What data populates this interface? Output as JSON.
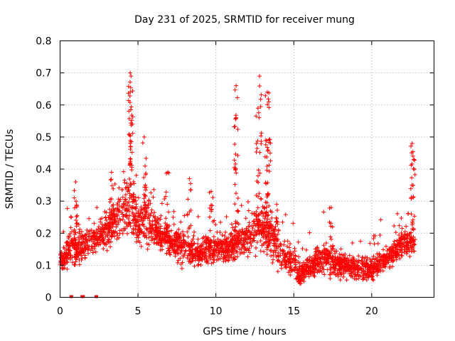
{
  "chart_data": {
    "type": "scatter",
    "title": "Day 231 of 2025, SRMTID for receiver mung",
    "xlabel": "GPS time / hours",
    "ylabel": "SRMTID / TECUs",
    "xlim": [
      0,
      24
    ],
    "ylim": [
      0,
      0.8
    ],
    "x_ticks": [
      0,
      5,
      10,
      15,
      20
    ],
    "y_ticks": [
      0,
      0.1,
      0.2,
      0.3,
      0.4,
      0.5,
      0.6,
      0.7,
      0.8
    ],
    "x_tick_labels": [
      "0",
      "5",
      "10",
      "15",
      "20"
    ],
    "y_tick_labels": [
      "0",
      "0.1",
      "0.2",
      "0.3",
      "0.4",
      "0.5",
      "0.6",
      "0.7",
      "0.8"
    ],
    "grid": true,
    "marker": "+",
    "color": "#ff0000",
    "zero_markers_x": [
      0.7,
      0.75,
      1.4,
      1.5,
      2.3,
      2.35
    ],
    "envelope": [
      {
        "x": 0.0,
        "center": 0.11,
        "spread": 0.03
      },
      {
        "x": 0.7,
        "center": 0.16,
        "spread": 0.05
      },
      {
        "x": 1.0,
        "center": 0.15,
        "spread": 0.07
      },
      {
        "x": 1.5,
        "center": 0.16,
        "spread": 0.05
      },
      {
        "x": 2.5,
        "center": 0.19,
        "spread": 0.04
      },
      {
        "x": 3.2,
        "center": 0.22,
        "spread": 0.07
      },
      {
        "x": 4.0,
        "center": 0.27,
        "spread": 0.1
      },
      {
        "x": 4.5,
        "center": 0.3,
        "spread": 0.12
      },
      {
        "x": 5.0,
        "center": 0.22,
        "spread": 0.06
      },
      {
        "x": 5.5,
        "center": 0.25,
        "spread": 0.1
      },
      {
        "x": 6.0,
        "center": 0.21,
        "spread": 0.05
      },
      {
        "x": 7.0,
        "center": 0.18,
        "spread": 0.05
      },
      {
        "x": 8.0,
        "center": 0.15,
        "spread": 0.05
      },
      {
        "x": 9.0,
        "center": 0.14,
        "spread": 0.04
      },
      {
        "x": 10.0,
        "center": 0.16,
        "spread": 0.05
      },
      {
        "x": 11.0,
        "center": 0.16,
        "spread": 0.05
      },
      {
        "x": 12.0,
        "center": 0.19,
        "spread": 0.06
      },
      {
        "x": 13.0,
        "center": 0.21,
        "spread": 0.08
      },
      {
        "x": 13.5,
        "center": 0.2,
        "spread": 0.07
      },
      {
        "x": 14.0,
        "center": 0.14,
        "spread": 0.05
      },
      {
        "x": 15.0,
        "center": 0.11,
        "spread": 0.05
      },
      {
        "x": 15.3,
        "center": 0.07,
        "spread": 0.03
      },
      {
        "x": 16.0,
        "center": 0.1,
        "spread": 0.04
      },
      {
        "x": 17.0,
        "center": 0.12,
        "spread": 0.05
      },
      {
        "x": 18.0,
        "center": 0.1,
        "spread": 0.04
      },
      {
        "x": 19.0,
        "center": 0.09,
        "spread": 0.04
      },
      {
        "x": 20.0,
        "center": 0.09,
        "spread": 0.04
      },
      {
        "x": 21.0,
        "center": 0.12,
        "spread": 0.04
      },
      {
        "x": 22.0,
        "center": 0.17,
        "spread": 0.04
      },
      {
        "x": 22.8,
        "center": 0.17,
        "spread": 0.04
      }
    ],
    "peaks": [
      {
        "x": 1.0,
        "y": 0.36
      },
      {
        "x": 3.3,
        "y": 0.39
      },
      {
        "x": 4.5,
        "y": 0.7
      },
      {
        "x": 4.55,
        "y": 0.69
      },
      {
        "x": 4.5,
        "y": 0.64
      },
      {
        "x": 5.4,
        "y": 0.5
      },
      {
        "x": 6.9,
        "y": 0.39
      },
      {
        "x": 8.3,
        "y": 0.37
      },
      {
        "x": 9.7,
        "y": 0.33
      },
      {
        "x": 11.3,
        "y": 0.66
      },
      {
        "x": 11.3,
        "y": 0.56
      },
      {
        "x": 12.8,
        "y": 0.69
      },
      {
        "x": 12.7,
        "y": 0.59
      },
      {
        "x": 13.3,
        "y": 0.64
      },
      {
        "x": 13.4,
        "y": 0.61
      },
      {
        "x": 13.2,
        "y": 0.49
      },
      {
        "x": 13.9,
        "y": 0.29
      },
      {
        "x": 17.4,
        "y": 0.28
      },
      {
        "x": 22.6,
        "y": 0.48
      },
      {
        "x": 22.7,
        "y": 0.43
      }
    ]
  }
}
